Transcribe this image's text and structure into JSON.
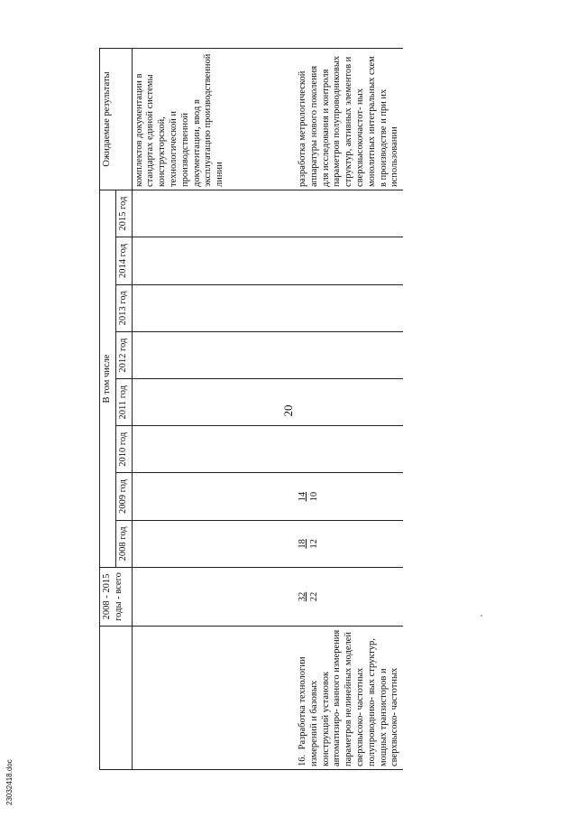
{
  "page_number": "20",
  "footer_code": "23032418.doc",
  "table": {
    "headers": {
      "total": "2008 - 2015 годы - всего",
      "including": "В том числе",
      "years": [
        "2008 год",
        "2009 год",
        "2010 год",
        "2011 год",
        "2012 год",
        "2013 год",
        "2014 год",
        "2015 год"
      ],
      "results": "Ожидаемые результаты"
    },
    "rows": [
      {
        "num": "",
        "name": "",
        "total": {
          "top": "",
          "bottom": ""
        },
        "y2008": {
          "top": "",
          "bottom": ""
        },
        "y2009": {
          "top": "",
          "bottom": ""
        },
        "result": "комплектов документации в стандартах единой системы конструкторской, технологической и производственной документации, ввод в эксплуатацию производственной линии"
      },
      {
        "num": "16.",
        "name": "Разработка технологии измерений и базовых конструкций установок автоматизиро- ванного измерения параметров нелинейных моделей сверхвысоко- частотных полупроводнико- вых структур, мощных транзисторов и сверхвысоко- частотных",
        "total": {
          "top": "32",
          "bottom": "22"
        },
        "y2008": {
          "top": "18",
          "bottom": "12"
        },
        "y2009": {
          "top": "14",
          "bottom": "10"
        },
        "result": "разработка метрологической аппаратуры нового поколения для исследования и контроля параметров полупроводниковых структур, активных элементов и сверхвысокочастот- ных монолитных интегральных схем в производстве и при их использовании"
      }
    ]
  }
}
